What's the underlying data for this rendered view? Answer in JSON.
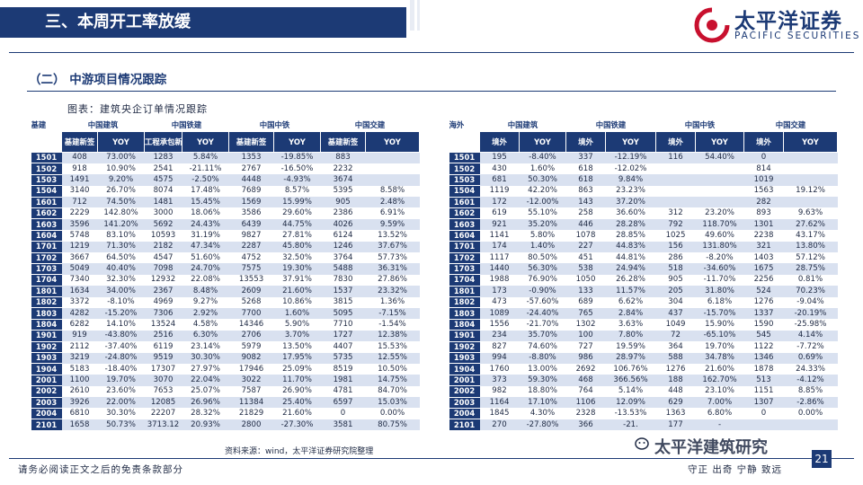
{
  "header": {
    "title": "三、本周开工率放缓",
    "brand_name": "太平洋证券",
    "brand_sub": "PACIFIC SECURITIES"
  },
  "section": {
    "subtitle": "（二） 中游项目情况跟踪",
    "figure_title": "图表：建筑央企订单情况跟踪"
  },
  "left_table": {
    "category": "基建",
    "groups": [
      "中国建筑",
      "中国铁建",
      "中国中铁",
      "中国交建"
    ],
    "columns": [
      "基建新签",
      "YOY",
      "工程承包新签",
      "YOY",
      "基建新签",
      "YOY",
      "基建新签",
      "YOY"
    ],
    "rows": [
      [
        "1501",
        "408",
        "73.00%",
        "1283",
        "5.84%",
        "1353",
        "-19.85%",
        "883",
        ""
      ],
      [
        "1502",
        "918",
        "10.90%",
        "2541",
        "-21.11%",
        "2767",
        "-16.50%",
        "2232",
        ""
      ],
      [
        "1503",
        "1491",
        "9.20%",
        "4575",
        "-2.50%",
        "4448",
        "-4.93%",
        "3674",
        ""
      ],
      [
        "1504",
        "3140",
        "26.70%",
        "8074",
        "17.48%",
        "7689",
        "8.57%",
        "5395",
        "8.58%"
      ],
      [
        "1601",
        "712",
        "74.50%",
        "1481",
        "15.45%",
        "1569",
        "15.99%",
        "905",
        "2.48%"
      ],
      [
        "1602",
        "2229",
        "142.80%",
        "3000",
        "18.06%",
        "3586",
        "29.60%",
        "2386",
        "6.91%"
      ],
      [
        "1603",
        "3596",
        "141.20%",
        "5692",
        "24.43%",
        "6439",
        "44.75%",
        "4026",
        "9.59%"
      ],
      [
        "1604",
        "5748",
        "83.10%",
        "10593",
        "31.19%",
        "9827",
        "27.81%",
        "6124",
        "13.52%"
      ],
      [
        "1701",
        "1219",
        "71.30%",
        "2182",
        "47.34%",
        "2287",
        "45.80%",
        "1246",
        "37.67%"
      ],
      [
        "1702",
        "3667",
        "64.50%",
        "4547",
        "51.60%",
        "4752",
        "32.50%",
        "3764",
        "57.73%"
      ],
      [
        "1703",
        "5049",
        "40.40%",
        "7098",
        "24.70%",
        "7575",
        "19.30%",
        "5488",
        "36.31%"
      ],
      [
        "1704",
        "7340",
        "32.30%",
        "12932",
        "22.08%",
        "13553",
        "37.91%",
        "7830",
        "27.86%"
      ],
      [
        "1801",
        "1634",
        "34.00%",
        "2367",
        "8.48%",
        "2609",
        "21.60%",
        "1537",
        "23.32%"
      ],
      [
        "1802",
        "3372",
        "-8.10%",
        "4969",
        "9.27%",
        "5268",
        "10.86%",
        "3815",
        "1.36%"
      ],
      [
        "1803",
        "4282",
        "-15.20%",
        "7306",
        "2.92%",
        "7700",
        "1.60%",
        "5095",
        "-7.15%"
      ],
      [
        "1804",
        "6282",
        "14.10%",
        "13524",
        "4.58%",
        "14346",
        "5.90%",
        "7710",
        "-1.54%"
      ],
      [
        "1901",
        "919",
        "-43.80%",
        "2516",
        "6.30%",
        "2706",
        "3.70%",
        "1727",
        "12.38%"
      ],
      [
        "1902",
        "2112",
        "-37.40%",
        "6119",
        "23.14%",
        "5979",
        "13.50%",
        "4407",
        "15.53%"
      ],
      [
        "1903",
        "3219",
        "-24.80%",
        "9519",
        "30.30%",
        "9082",
        "17.95%",
        "5735",
        "12.55%"
      ],
      [
        "1904",
        "5183",
        "-18.40%",
        "17307",
        "27.97%",
        "17946",
        "25.09%",
        "8519",
        "10.50%"
      ],
      [
        "2001",
        "1100",
        "19.70%",
        "3070",
        "22.04%",
        "3022",
        "11.70%",
        "1981",
        "14.75%"
      ],
      [
        "2002",
        "2610",
        "23.60%",
        "7653",
        "25.07%",
        "7587",
        "26.90%",
        "4781",
        "84.70%"
      ],
      [
        "2003",
        "3926",
        "22.00%",
        "12085",
        "26.96%",
        "11384",
        "25.40%",
        "6597",
        "15.03%"
      ],
      [
        "2004",
        "6810",
        "30.30%",
        "22207",
        "28.32%",
        "21829",
        "21.60%",
        "0",
        "0.00%"
      ],
      [
        "2101",
        "1658",
        "50.73%",
        "3713.12",
        "20.93%",
        "2800",
        "-27.30%",
        "3581",
        "80.75%"
      ]
    ]
  },
  "right_table": {
    "category": "海外",
    "groups": [
      "中国建筑",
      "中国铁建",
      "中国中铁",
      "中国交建"
    ],
    "columns": [
      "境外",
      "YOY",
      "境外",
      "YOY",
      "境外",
      "YOY",
      "境外",
      "YOY"
    ],
    "rows": [
      [
        "1501",
        "195",
        "-8.40%",
        "337",
        "-12.19%",
        "116",
        "54.40%",
        "0",
        ""
      ],
      [
        "1502",
        "430",
        "1.60%",
        "618",
        "-12.02%",
        "",
        "",
        "814",
        ""
      ],
      [
        "1503",
        "681",
        "50.30%",
        "618",
        "9.84%",
        "",
        "",
        "1019",
        ""
      ],
      [
        "1504",
        "1119",
        "42.20%",
        "863",
        "23.23%",
        "",
        "",
        "1563",
        "19.12%"
      ],
      [
        "1601",
        "172",
        "-12.00%",
        "143",
        "37.20%",
        "",
        "",
        "282",
        ""
      ],
      [
        "1602",
        "619",
        "55.10%",
        "258",
        "36.60%",
        "312",
        "23.20%",
        "893",
        "9.63%"
      ],
      [
        "1603",
        "921",
        "35.20%",
        "446",
        "28.28%",
        "792",
        "118.70%",
        "1301",
        "27.62%"
      ],
      [
        "1604",
        "1141",
        "5.80%",
        "1078",
        "28.85%",
        "1025",
        "49.60%",
        "2238",
        "43.17%"
      ],
      [
        "1701",
        "174",
        "1.40%",
        "227",
        "44.83%",
        "156",
        "131.80%",
        "321",
        "13.80%"
      ],
      [
        "1702",
        "1117",
        "80.50%",
        "451",
        "44.81%",
        "286",
        "-8.20%",
        "1403",
        "57.12%"
      ],
      [
        "1703",
        "1440",
        "56.30%",
        "538",
        "24.94%",
        "518",
        "-34.60%",
        "1675",
        "28.75%"
      ],
      [
        "1704",
        "1988",
        "76.90%",
        "1050",
        "26.28%",
        "905",
        "-11.70%",
        "2256",
        "0.81%"
      ],
      [
        "1801",
        "173",
        "-0.90%",
        "133",
        "11.57%",
        "205",
        "31.80%",
        "524",
        "70.23%"
      ],
      [
        "1802",
        "473",
        "-57.60%",
        "689",
        "6.62%",
        "304",
        "6.18%",
        "1276",
        "-9.04%"
      ],
      [
        "1803",
        "1089",
        "-24.40%",
        "765",
        "2.84%",
        "437",
        "-15.70%",
        "1337",
        "-20.19%"
      ],
      [
        "1804",
        "1556",
        "-21.70%",
        "1302",
        "3.63%",
        "1049",
        "15.90%",
        "1590",
        "-25.98%"
      ],
      [
        "1901",
        "234",
        "35.70%",
        "100",
        "7.80%",
        "72",
        "-65.10%",
        "545",
        "4.14%"
      ],
      [
        "1902",
        "827",
        "74.60%",
        "727",
        "19.59%",
        "364",
        "19.70%",
        "1122",
        "-7.72%"
      ],
      [
        "1903",
        "994",
        "-8.80%",
        "986",
        "28.97%",
        "588",
        "34.78%",
        "1346",
        "0.69%"
      ],
      [
        "1904",
        "1760",
        "13.00%",
        "2692",
        "106.76%",
        "1276",
        "21.60%",
        "1878",
        "24.33%"
      ],
      [
        "2001",
        "373",
        "59.30%",
        "468",
        "366.56%",
        "188",
        "162.70%",
        "513",
        "-4.12%"
      ],
      [
        "2002",
        "982",
        "18.80%",
        "764",
        "5.14%",
        "448",
        "23.10%",
        "1151",
        "8.85%"
      ],
      [
        "2003",
        "1164",
        "17.10%",
        "1106",
        "12.09%",
        "629",
        "7.00%",
        "1307",
        "-2.86%"
      ],
      [
        "2004",
        "1845",
        "4.30%",
        "2328",
        "-13.53%",
        "1363",
        "6.80%",
        "0",
        "0.00%"
      ],
      [
        "2101",
        "270",
        "-27.80%",
        "366",
        "-21.",
        "177",
        "-",
        "",
        ""
      ]
    ]
  },
  "footer": {
    "source": "资料来源：wind，太平洋证券研究院整理",
    "disclaimer": "请务必阅读正文之后的免责条款部分",
    "watermark": "太平洋建筑研究",
    "motto": "守正 出奇 宁静 致远",
    "page": "21"
  },
  "colors": {
    "brand": "#1c3a75",
    "row_alt": "#d9e1f0",
    "banner_light": "#e8ecf4"
  }
}
